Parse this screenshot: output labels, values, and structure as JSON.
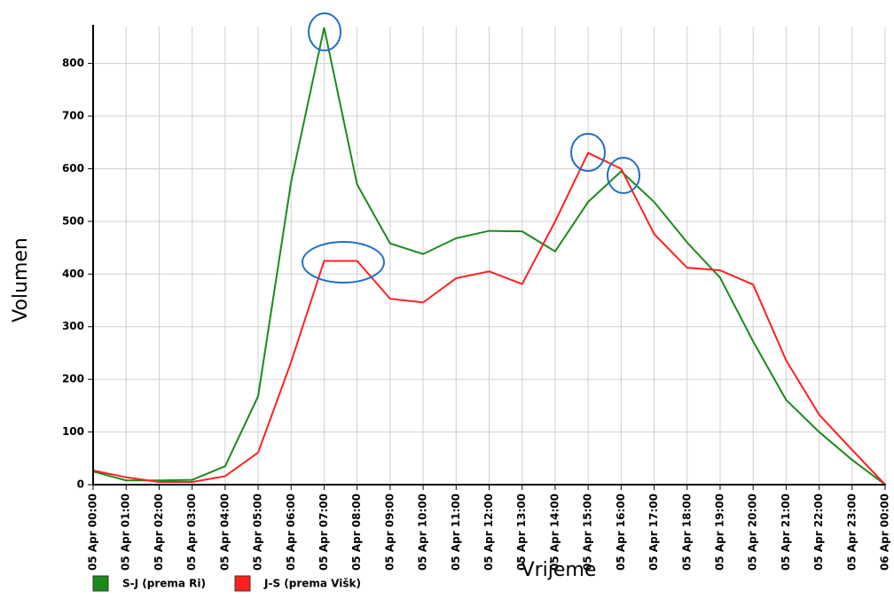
{
  "chart_data": {
    "type": "line",
    "xlabel": "Vrijeme",
    "ylabel": "Volumen",
    "categories": [
      "05 Apr 00:00",
      "05 Apr 01:00",
      "05 Apr 02:00",
      "05 Apr 03:00",
      "05 Apr 04:00",
      "05 Apr 05:00",
      "05 Apr 06:00",
      "05 Apr 07:00",
      "05 Apr 08:00",
      "05 Apr 09:00",
      "05 Apr 10:00",
      "05 Apr 11:00",
      "05 Apr 12:00",
      "05 Apr 13:00",
      "05 Apr 14:00",
      "05 Apr 15:00",
      "05 Apr 16:00",
      "05 Apr 17:00",
      "05 Apr 18:00",
      "05 Apr 19:00",
      "05 Apr 20:00",
      "05 Apr 21:00",
      "05 Apr 22:00",
      "05 Apr 23:00",
      "06 Apr 00:00"
    ],
    "series": [
      {
        "name": "S-J (prema Ri)",
        "color": "#1a8a1a",
        "values": [
          25,
          8,
          8,
          9,
          35,
          168,
          575,
          868,
          570,
          458,
          438,
          468,
          482,
          481,
          443,
          537,
          595,
          537,
          460,
          393,
          272,
          161,
          100,
          47,
          0
        ]
      },
      {
        "name": "J-S (prema Višk)",
        "color": "#ff2020",
        "values": [
          27,
          14,
          5,
          5,
          16,
          61,
          233,
          425,
          425,
          353,
          346,
          392,
          405,
          381,
          500,
          630,
          600,
          476,
          412,
          407,
          380,
          236,
          133,
          66,
          0
        ]
      }
    ],
    "ylim": [
      0,
      870
    ],
    "yticks": [
      0,
      100,
      200,
      300,
      400,
      500,
      600,
      700,
      800
    ],
    "grid": true
  }
}
